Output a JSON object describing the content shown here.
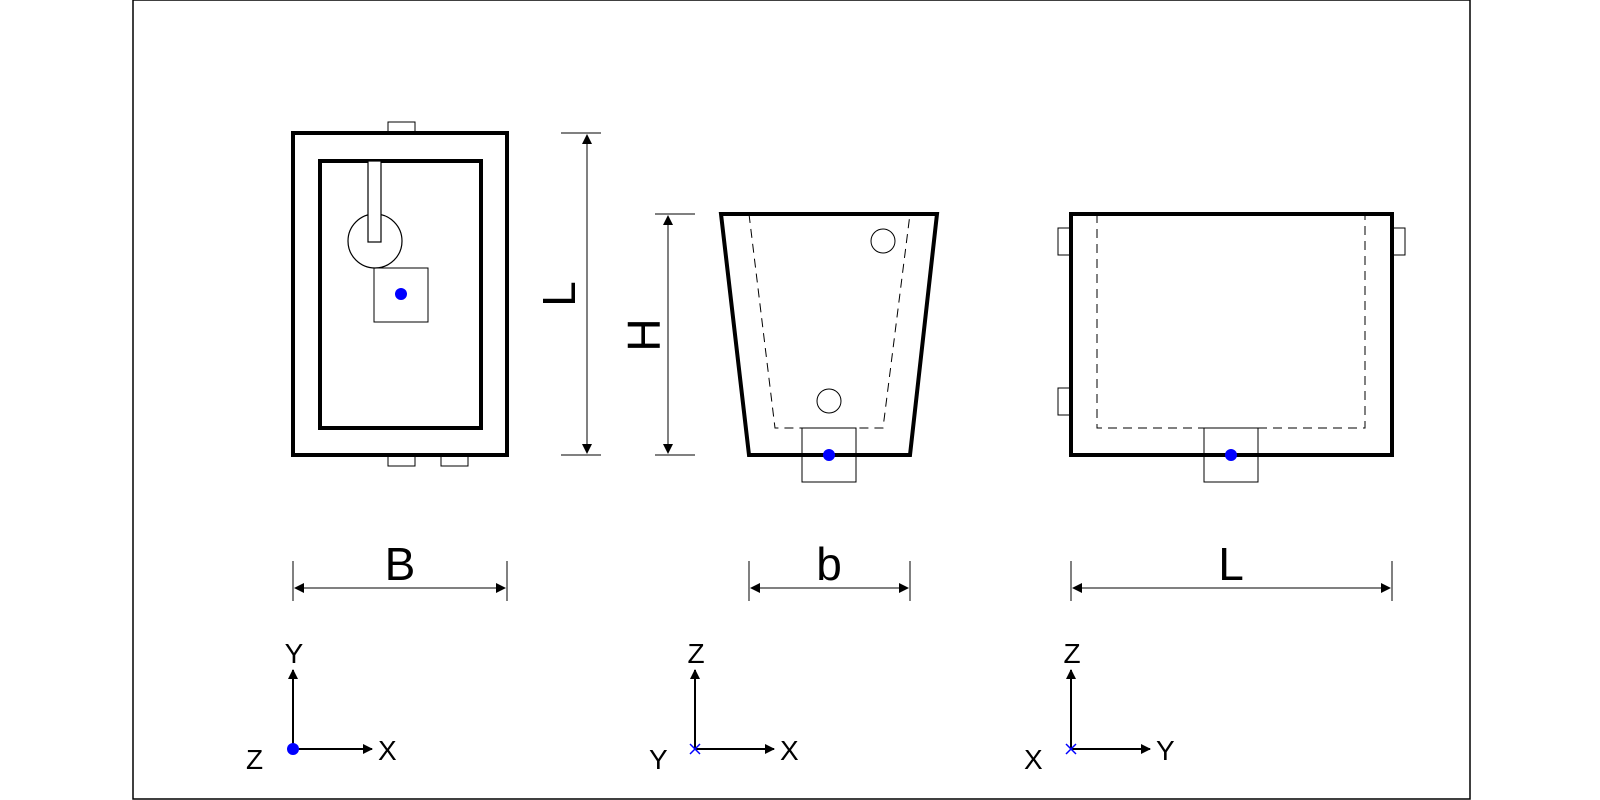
{
  "colors": {
    "line": "#000000",
    "marker": "#0000ff",
    "background": "#ffffff"
  },
  "views": {
    "top": {
      "dimensions": {
        "width_label": "B",
        "length_label": "L"
      },
      "axes": {
        "vertical": "Y",
        "horizontal": "X",
        "normal": "Z"
      }
    },
    "front": {
      "dimensions": {
        "width_label": "b",
        "height_label": "H"
      },
      "axes": {
        "vertical": "Z",
        "horizontal": "X",
        "normal": "Y"
      }
    },
    "side": {
      "dimensions": {
        "width_label": "L"
      },
      "axes": {
        "vertical": "Z",
        "horizontal": "Y",
        "normal": "X"
      }
    }
  }
}
